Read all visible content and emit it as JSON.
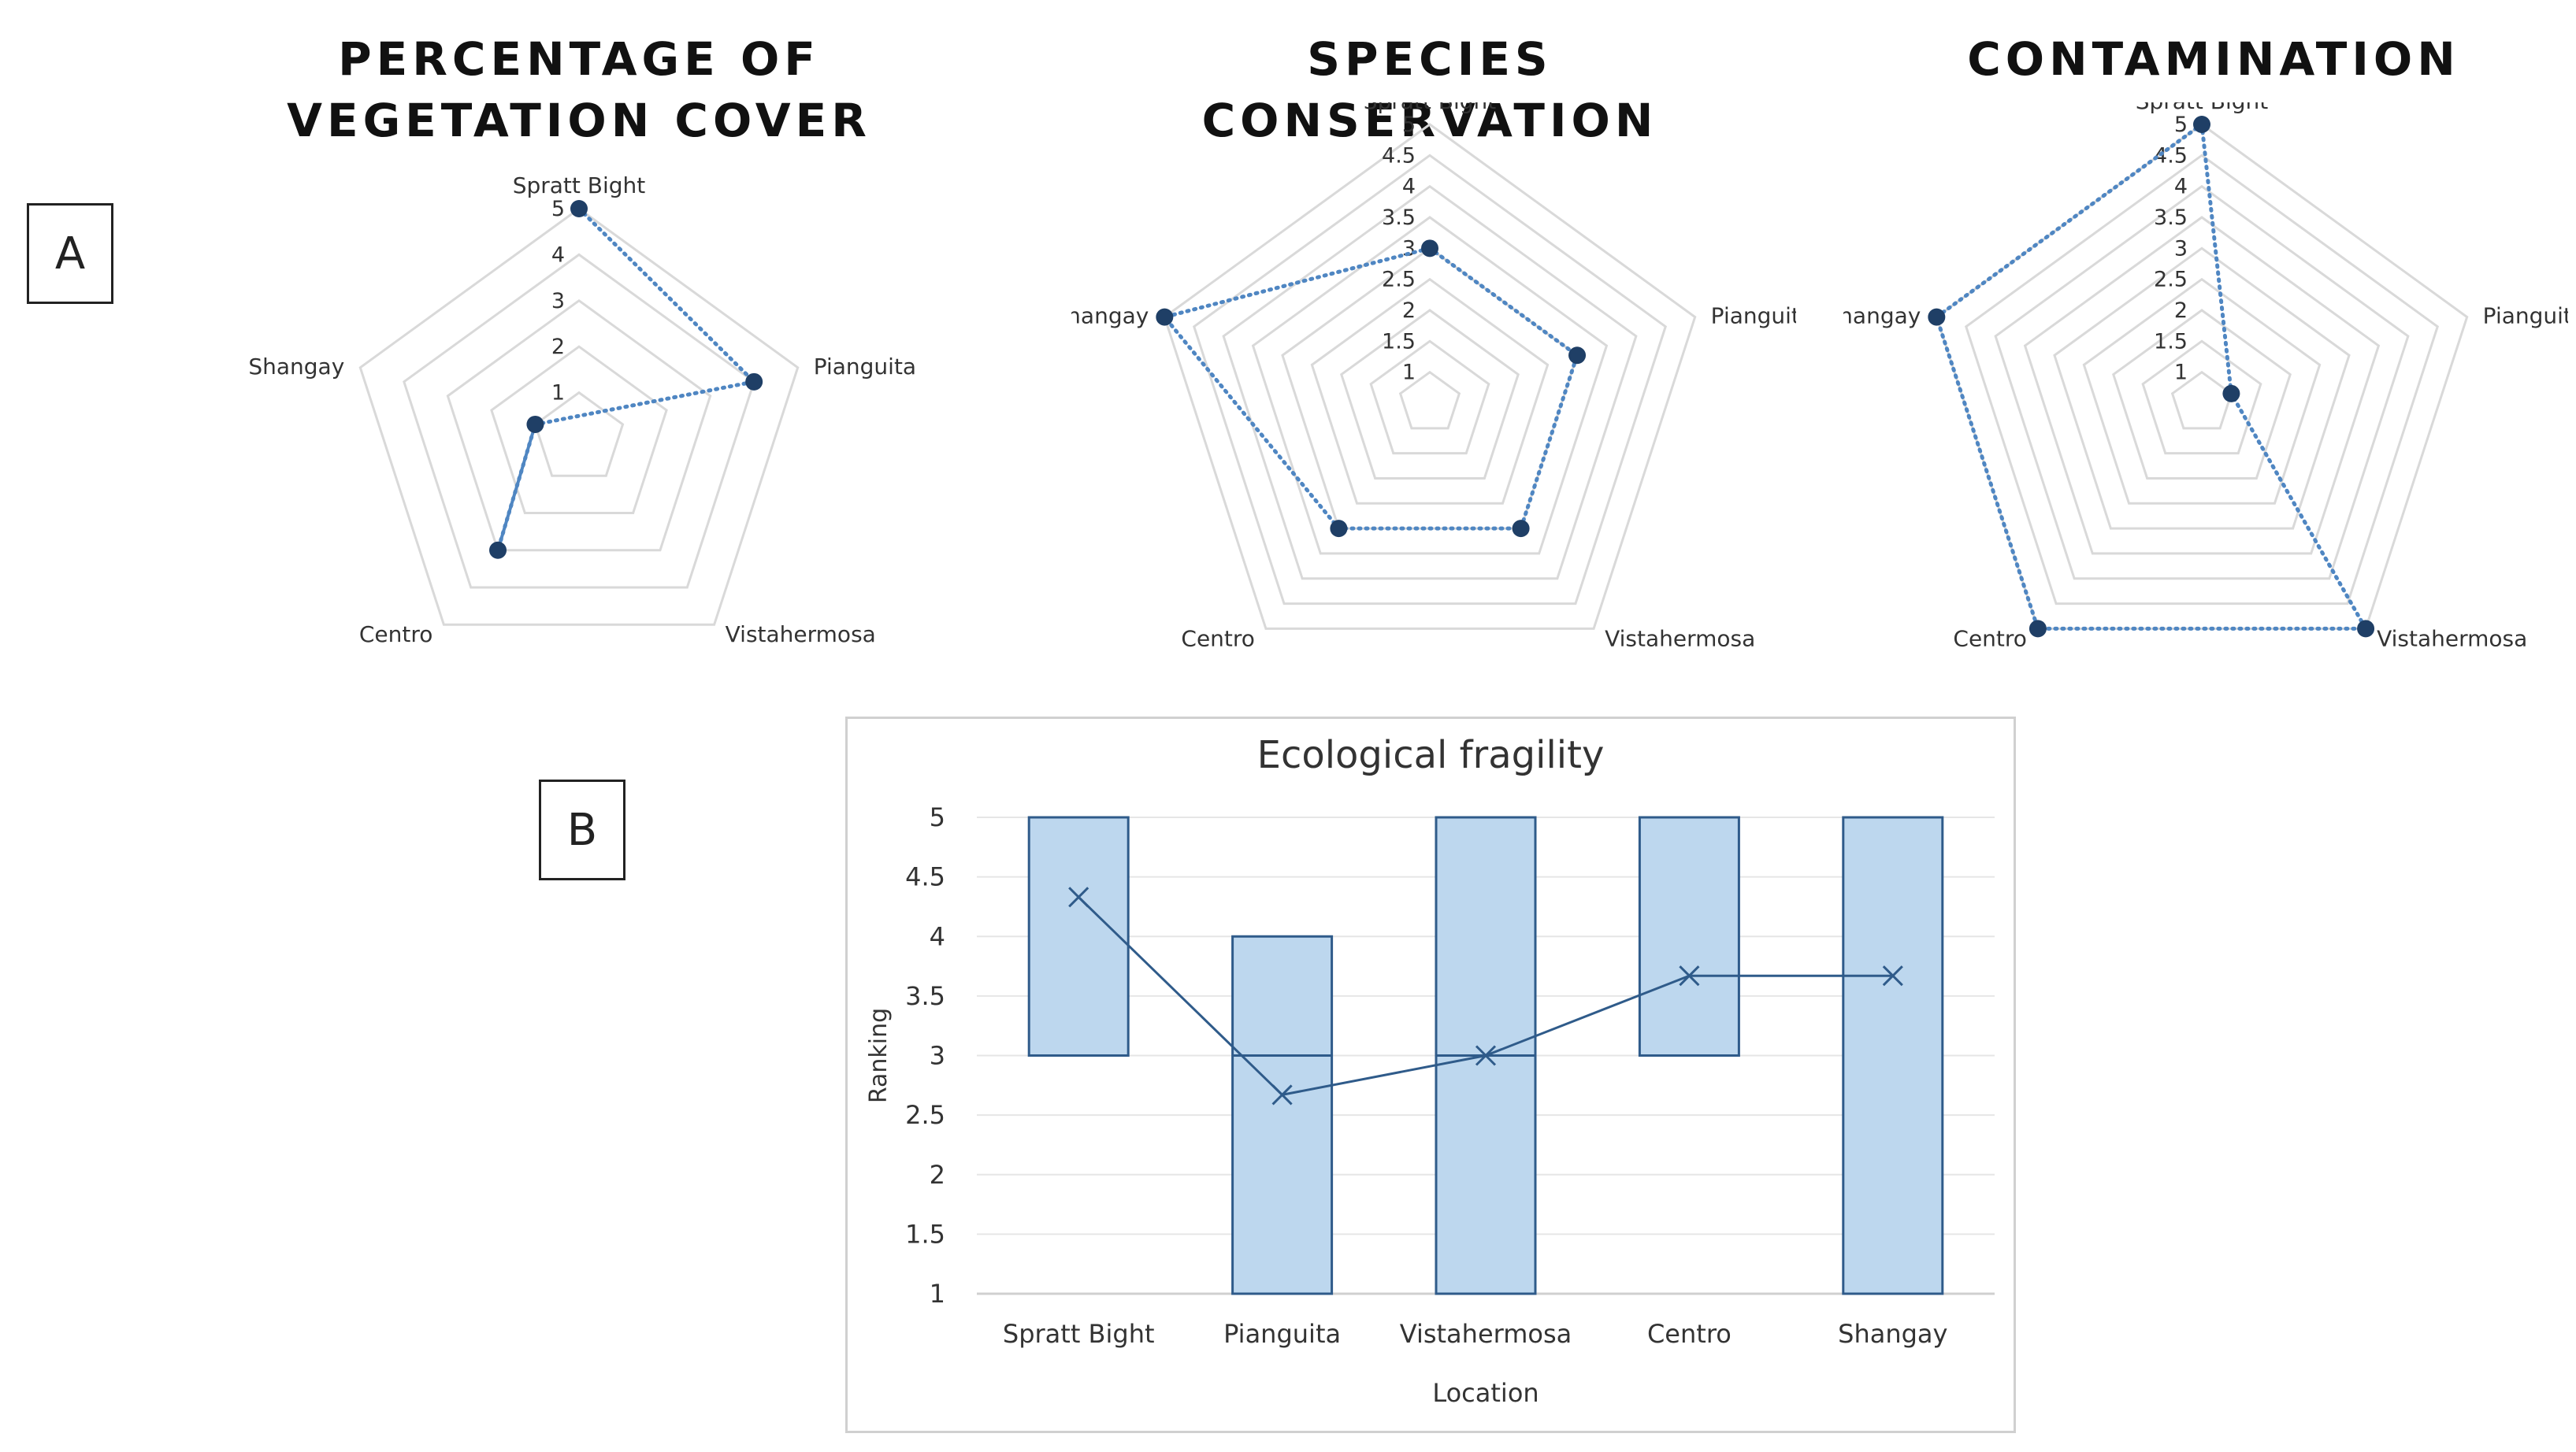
{
  "panels": {
    "a_label": "A",
    "b_label": "B"
  },
  "chart_data": [
    {
      "type": "radar",
      "title": "PERCENTAGE OF VEGETATION COVER",
      "axes": [
        "Spratt Bight",
        "Pianguita",
        "Vistahermosa",
        "Centro",
        "Shangay"
      ],
      "scale_min": 0,
      "scale_max": 5,
      "ticks": [
        "1",
        "2",
        "3",
        "4",
        "5"
      ],
      "tick_values": [
        1,
        2,
        3,
        4,
        5
      ],
      "values": [
        5,
        4,
        null,
        3,
        1
      ],
      "point_order": [
        "Spratt Bight",
        "Pianguita",
        "Shangay",
        "Centro"
      ],
      "color": "#1f3f66",
      "line_color": "#4f86c2"
    },
    {
      "type": "radar",
      "title": "SPECIES CONSERVATION",
      "axes": [
        "Spratt Bight",
        "Pianguita",
        "Vistahermosa",
        "Centro",
        "Shangay"
      ],
      "scale_min": 0.5,
      "scale_max": 5,
      "ticks": [
        "1",
        "1.5",
        "2",
        "2.5",
        "3",
        "3.5",
        "4",
        "4.5",
        "5"
      ],
      "tick_values": [
        1,
        1.5,
        2,
        2.5,
        3,
        3.5,
        4,
        4.5,
        5
      ],
      "values": [
        3,
        3,
        3,
        3,
        5
      ],
      "color": "#1f3f66",
      "line_color": "#4f86c2"
    },
    {
      "type": "radar",
      "title": "CONTAMINATION",
      "axes": [
        "Spratt Bight",
        "Pianguita",
        "Vistahermosa",
        "Centro",
        "Shangay"
      ],
      "scale_min": 0.5,
      "scale_max": 5,
      "ticks": [
        "1",
        "1.5",
        "2",
        "2.5",
        "3",
        "3.5",
        "4",
        "4.5",
        "5"
      ],
      "tick_values": [
        1,
        1.5,
        2,
        2.5,
        3,
        3.5,
        4,
        4.5,
        5
      ],
      "values": [
        5,
        1,
        5,
        5,
        5
      ],
      "color": "#1f3f66",
      "line_color": "#4f86c2"
    },
    {
      "type": "bar",
      "title": "Ecological fragility",
      "xlabel": "Location",
      "ylabel": "Ranking",
      "categories": [
        "Spratt Bight",
        "Pianguita",
        "Vistahermosa",
        "Centro",
        "Shangay"
      ],
      "ylim": [
        1,
        5
      ],
      "yticks": [
        "1",
        "1.5",
        "2",
        "2.5",
        "3",
        "3.5",
        "4",
        "4.5",
        "5"
      ],
      "ytick_values": [
        1,
        1.5,
        2,
        2.5,
        3,
        3.5,
        4,
        4.5,
        5
      ],
      "ranges": [
        {
          "low": 3,
          "mid": 3,
          "high": 5
        },
        {
          "low": 1,
          "mid": 3,
          "high": 4
        },
        {
          "low": 1,
          "mid": 3,
          "high": 5
        },
        {
          "low": 3,
          "mid": 3,
          "high": 5
        },
        {
          "low": 1,
          "mid": 1,
          "high": 5
        }
      ],
      "means": [
        4.33,
        2.67,
        3,
        3.67,
        3.67
      ],
      "bar_fill": "#bdd7ee",
      "bar_stroke": "#2f5b8a",
      "mean_color": "#2f5b8a",
      "grid_color": "#e6e6e6"
    }
  ]
}
